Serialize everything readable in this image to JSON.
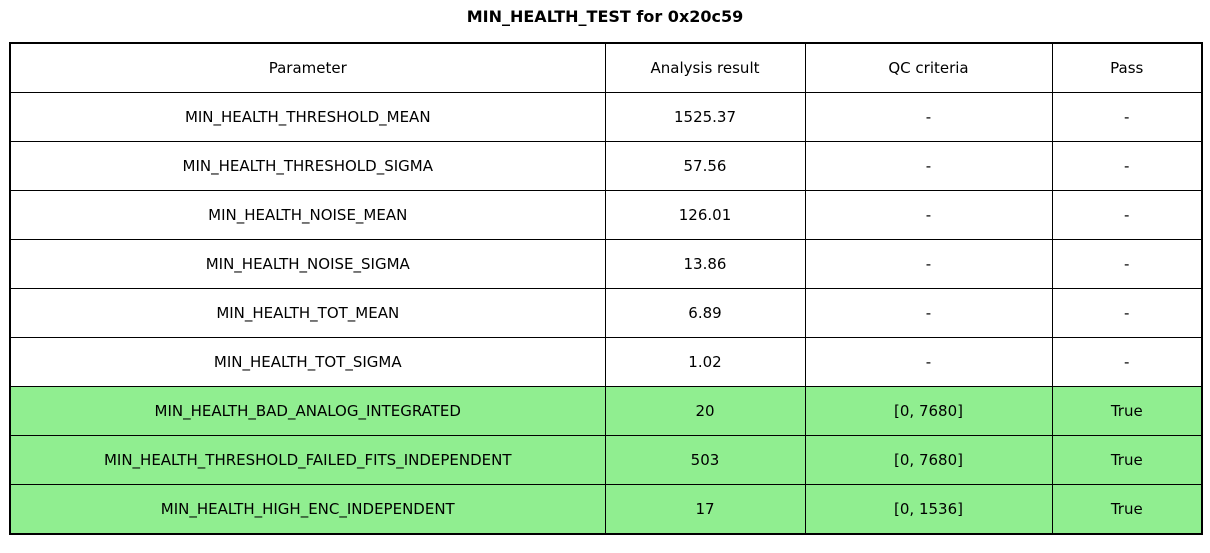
{
  "title": "MIN_HEALTH_TEST for 0x20c59",
  "colors": {
    "pass_row_bg": "#90EE90",
    "border": "#000000",
    "row_bg": "#FFFFFF"
  },
  "chart_data": {
    "type": "table",
    "title": "MIN_HEALTH_TEST for 0x20c59",
    "columns": [
      "Parameter",
      "Analysis result",
      "QC criteria",
      "Pass"
    ],
    "rows": [
      {
        "parameter": "MIN_HEALTH_THRESHOLD_MEAN",
        "result": "1525.37",
        "qc": "-",
        "pass": "-",
        "highlight": false
      },
      {
        "parameter": "MIN_HEALTH_THRESHOLD_SIGMA",
        "result": "57.56",
        "qc": "-",
        "pass": "-",
        "highlight": false
      },
      {
        "parameter": "MIN_HEALTH_NOISE_MEAN",
        "result": "126.01",
        "qc": "-",
        "pass": "-",
        "highlight": false
      },
      {
        "parameter": "MIN_HEALTH_NOISE_SIGMA",
        "result": "13.86",
        "qc": "-",
        "pass": "-",
        "highlight": false
      },
      {
        "parameter": "MIN_HEALTH_TOT_MEAN",
        "result": "6.89",
        "qc": "-",
        "pass": "-",
        "highlight": false
      },
      {
        "parameter": "MIN_HEALTH_TOT_SIGMA",
        "result": "1.02",
        "qc": "-",
        "pass": "-",
        "highlight": false
      },
      {
        "parameter": "MIN_HEALTH_BAD_ANALOG_INTEGRATED",
        "result": "20",
        "qc": "[0, 7680]",
        "pass": "True",
        "highlight": true
      },
      {
        "parameter": "MIN_HEALTH_THRESHOLD_FAILED_FITS_INDEPENDENT",
        "result": "503",
        "qc": "[0, 7680]",
        "pass": "True",
        "highlight": true
      },
      {
        "parameter": "MIN_HEALTH_HIGH_ENC_INDEPENDENT",
        "result": "17",
        "qc": "[0, 1536]",
        "pass": "True",
        "highlight": true
      }
    ],
    "layout": {
      "grid": true,
      "highlight_meaning": "QC-checked rows that passed are filled with light green"
    }
  }
}
